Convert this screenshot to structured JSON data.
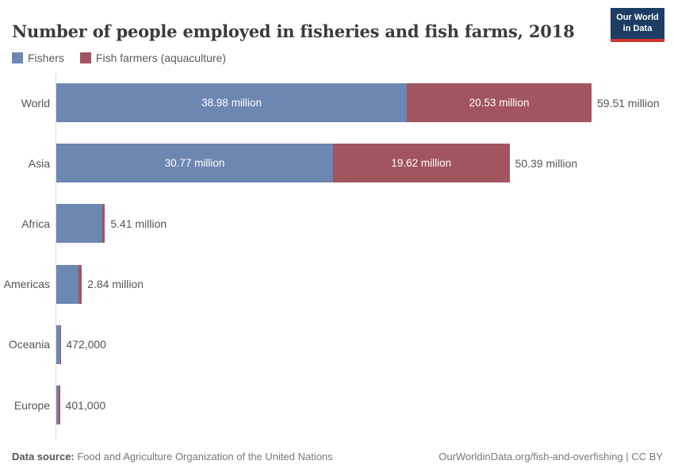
{
  "header": {
    "title": "Number of people employed in fisheries and fish farms, 2018",
    "logo": {
      "line1": "Our World",
      "line2": "in Data",
      "bg_color": "#1d3d63",
      "stripe_color": "#d0342c"
    }
  },
  "legend": {
    "items": [
      {
        "label": "Fishers",
        "color": "#6c87b1"
      },
      {
        "label": "Fish farmers (aquaculture)",
        "color": "#a2555e"
      }
    ]
  },
  "chart_data": {
    "type": "bar",
    "orientation": "horizontal",
    "stacked": true,
    "title": "Number of people employed in fisheries and fish farms, 2018",
    "categories": [
      "World",
      "Asia",
      "Africa",
      "Americas",
      "Oceania",
      "Europe"
    ],
    "series": [
      {
        "name": "Fishers",
        "color": "#6c87b1",
        "values": [
          38.98,
          30.77,
          5.07,
          2.46,
          0.45,
          0.221
        ]
      },
      {
        "name": "Fish farmers (aquaculture)",
        "color": "#a2555e",
        "values": [
          20.53,
          19.62,
          0.34,
          0.38,
          0.022,
          0.18
        ]
      }
    ],
    "unit": "million people",
    "totals": [
      59.51,
      50.39,
      5.41,
      2.84,
      0.472,
      0.401
    ],
    "total_labels": [
      "59.51 million",
      "50.39 million",
      "5.41 million",
      "2.84 million",
      "472,000",
      "401,000"
    ],
    "segment_labels": [
      [
        "38.98 million",
        "20.53 million"
      ],
      [
        "30.77 million",
        "19.62 million"
      ],
      [
        "",
        ""
      ],
      [
        "",
        ""
      ],
      [
        "",
        ""
      ],
      [
        "",
        ""
      ]
    ],
    "xlim": [
      0,
      59.51
    ],
    "grid": false,
    "legend_position": "top-left"
  },
  "footer": {
    "datasource_label": "Data source:",
    "datasource_text": " Food and Agriculture Organization of the United Nations",
    "credit": "OurWorldinData.org/fish-and-overfishing | CC BY"
  }
}
